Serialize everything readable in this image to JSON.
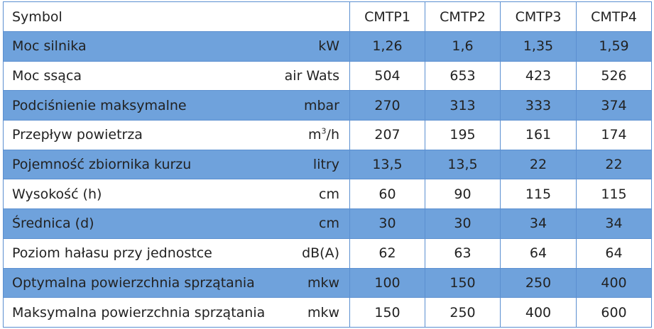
{
  "header": {
    "label": "Symbol",
    "models": [
      "CMTP1",
      "CMTP2",
      "CMTP3",
      "CMTP4"
    ]
  },
  "rows": [
    {
      "label": "Moc silnika",
      "unit": "kW",
      "values": [
        "1,26",
        "1,6",
        "1,35",
        "1,59"
      ]
    },
    {
      "label": "Moc ssąca",
      "unit": "air Wats",
      "values": [
        "504",
        "653",
        "423",
        "526"
      ]
    },
    {
      "label": "Podciśnienie maksymalne",
      "unit": "mbar",
      "values": [
        "270",
        "313",
        "333",
        "374"
      ]
    },
    {
      "label": "Przepływ powietrza",
      "unit_base": "m",
      "unit_sup": "3",
      "unit_rest": "/h",
      "values": [
        "207",
        "195",
        "161",
        "174"
      ]
    },
    {
      "label": "Pojemność zbiornika kurzu",
      "unit": "litry",
      "values": [
        "13,5",
        "13,5",
        "22",
        "22"
      ]
    },
    {
      "label": "Wysokość (h)",
      "unit": "cm",
      "values": [
        "60",
        "90",
        "115",
        "115"
      ]
    },
    {
      "label": "Średnica (d)",
      "unit": "cm",
      "values": [
        "30",
        "30",
        "34",
        "34"
      ]
    },
    {
      "label": "Poziom hałasu przy jednostce",
      "unit": "dB(A)",
      "values": [
        "62",
        "63",
        "64",
        "64"
      ]
    },
    {
      "label": "Optymalna powierzchnia sprzątania",
      "unit": "mkw",
      "values": [
        "100",
        "150",
        "250",
        "400"
      ]
    },
    {
      "label": "Maksymalna powierzchnia sprzątania",
      "unit": "mkw",
      "values": [
        "150",
        "250",
        "400",
        "600"
      ]
    }
  ],
  "colors": {
    "shaded_row": "#6fa2dc",
    "border": "#5b8fd0",
    "text": "#222222"
  }
}
